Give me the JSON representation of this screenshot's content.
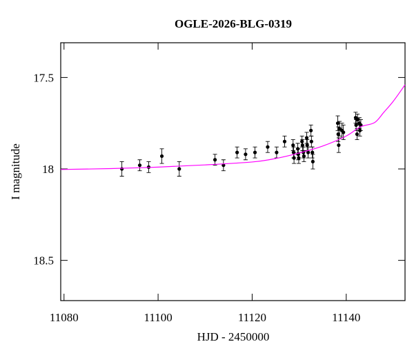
{
  "chart_data": {
    "type": "scatter",
    "title": "OGLE-2026-BLG-0319",
    "x_label": "HJD - 2450000",
    "y_label": "I magnitude",
    "xlim": [
      11079.3,
      11152.5
    ],
    "ylim": [
      18.72,
      17.31
    ],
    "xticks": [
      11080,
      11100,
      11120,
      11140
    ],
    "yticks": [
      17.5,
      18,
      18.5
    ],
    "series": [
      {
        "style": "errorbar",
        "color": "#000000",
        "x": [
          11092.3,
          11096.1,
          11098.0,
          11100.8,
          11104.5,
          11112.1,
          11113.9,
          11116.8,
          11118.6,
          11120.6,
          11123.3,
          11125.2,
          11126.9,
          11128.7,
          11128.8,
          11128.9,
          11129.7,
          11129.8,
          11129.9,
          11130.6,
          11130.7,
          11130.9,
          11131.0,
          11131.6,
          11131.7,
          11131.9,
          11132.5,
          11132.6,
          11132.8,
          11132.9,
          11138.2,
          11138.3,
          11138.4,
          11138.6,
          11139.1,
          11139.4,
          11142.0,
          11142.1,
          11142.3,
          11142.4,
          11142.8,
          11142.9,
          11143.1
        ],
        "values": [
          18.0,
          17.98,
          17.99,
          17.93,
          18.0,
          17.95,
          17.98,
          17.91,
          17.92,
          17.91,
          17.88,
          17.91,
          17.85,
          17.87,
          17.91,
          17.94,
          17.89,
          17.92,
          17.94,
          17.85,
          17.87,
          17.91,
          17.93,
          17.83,
          17.87,
          17.91,
          17.79,
          17.85,
          17.91,
          17.96,
          17.75,
          17.81,
          17.87,
          17.78,
          17.79,
          17.8,
          17.72,
          17.76,
          17.81,
          17.73,
          17.75,
          17.79,
          17.76
        ],
        "errors": [
          0.04,
          0.03,
          0.03,
          0.04,
          0.04,
          0.03,
          0.03,
          0.03,
          0.03,
          0.03,
          0.03,
          0.03,
          0.03,
          0.03,
          0.03,
          0.03,
          0.03,
          0.03,
          0.03,
          0.03,
          0.03,
          0.03,
          0.03,
          0.03,
          0.03,
          0.03,
          0.03,
          0.03,
          0.03,
          0.04,
          0.04,
          0.04,
          0.04,
          0.04,
          0.04,
          0.04,
          0.03,
          0.03,
          0.03,
          0.03,
          0.03,
          0.03,
          0.03
        ]
      },
      {
        "style": "line",
        "color": "#ff00ff",
        "x": [
          11079.3,
          11090,
          11100,
          11110,
          11120,
          11125,
          11130,
          11135,
          11140,
          11143,
          11146,
          11148,
          11150,
          11152.5
        ],
        "values": [
          18.003,
          17.998,
          17.99,
          17.978,
          17.962,
          17.943,
          17.913,
          17.875,
          17.82,
          17.77,
          17.747,
          17.69,
          17.63,
          17.54
        ]
      }
    ]
  }
}
